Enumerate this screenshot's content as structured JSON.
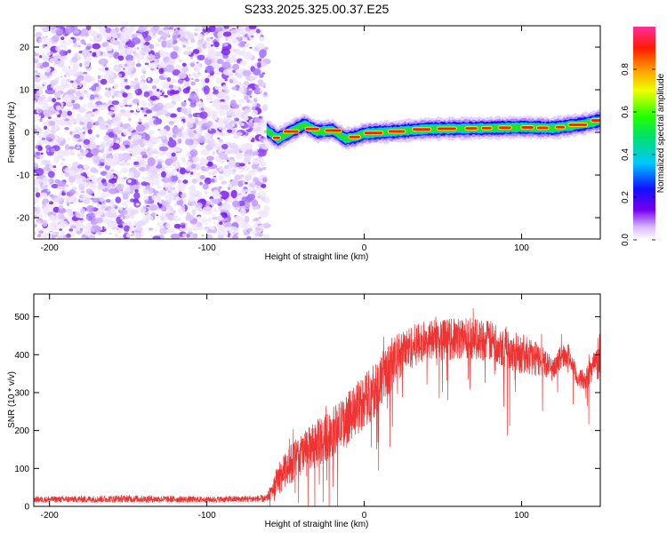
{
  "title": "S233.2025.325.00.37.E25",
  "chart_data": [
    {
      "type": "heatmap",
      "name": "spectrogram",
      "xlabel": "Height of straight line (km)",
      "ylabel": "Frequency (Hz)",
      "xlim": [
        -210,
        150
      ],
      "ylim": [
        -25,
        25
      ],
      "xticks": [
        -200,
        -100,
        0,
        100
      ],
      "yticks": [
        -20,
        -10,
        0,
        10,
        20
      ],
      "noise_region": {
        "x": [
          -210,
          -62
        ],
        "description": "broadband noise (purple/white speckle)"
      },
      "ridge": {
        "x": [
          -62,
          -55,
          -45,
          -38,
          -30,
          -20,
          -12,
          -5,
          0,
          10,
          20,
          40,
          60,
          80,
          100,
          120,
          140,
          150
        ],
        "freq": [
          0.5,
          -1.5,
          0.5,
          1.8,
          0.2,
          0.5,
          -1.5,
          -1.0,
          -0.3,
          0.0,
          0.2,
          0.8,
          0.9,
          1.0,
          1.2,
          1.0,
          2.0,
          2.8
        ]
      },
      "colorbar": {
        "label": "Normalized spectral amplitude",
        "range": [
          0.0,
          1.0
        ],
        "ticks": [
          "0.0",
          "0.2",
          "0.4",
          "0.6",
          "0.8"
        ],
        "colormap": "rainbow (white → purple → blue → cyan → green → yellow → red → pink)"
      }
    },
    {
      "type": "line",
      "name": "snr",
      "xlabel": "Height of straight line (km)",
      "ylabel": "SNR (10 * v/v)",
      "xlim": [
        -210,
        150
      ],
      "ylim": [
        0,
        560
      ],
      "xticks": [
        -200,
        -100,
        0,
        100
      ],
      "yticks": [
        0,
        100,
        200,
        300,
        400,
        500
      ],
      "color": "#ee3333",
      "envelope": {
        "x": [
          -210,
          -150,
          -100,
          -62,
          -55,
          -45,
          -35,
          -25,
          -15,
          -5,
          5,
          15,
          25,
          35,
          45,
          55,
          65,
          75,
          85,
          95,
          105,
          115,
          120,
          125,
          130,
          135,
          140,
          145,
          150
        ],
        "mean": [
          18,
          20,
          18,
          20,
          70,
          120,
          150,
          180,
          215,
          255,
          300,
          360,
          410,
          430,
          440,
          440,
          445,
          440,
          430,
          410,
          395,
          380,
          360,
          395,
          400,
          340,
          330,
          370,
          380
        ],
        "spread": [
          8,
          10,
          8,
          10,
          40,
          55,
          60,
          65,
          65,
          70,
          75,
          70,
          60,
          55,
          55,
          55,
          55,
          55,
          55,
          55,
          50,
          40,
          25,
          30,
          30,
          25,
          25,
          40,
          50
        ]
      }
    }
  ]
}
